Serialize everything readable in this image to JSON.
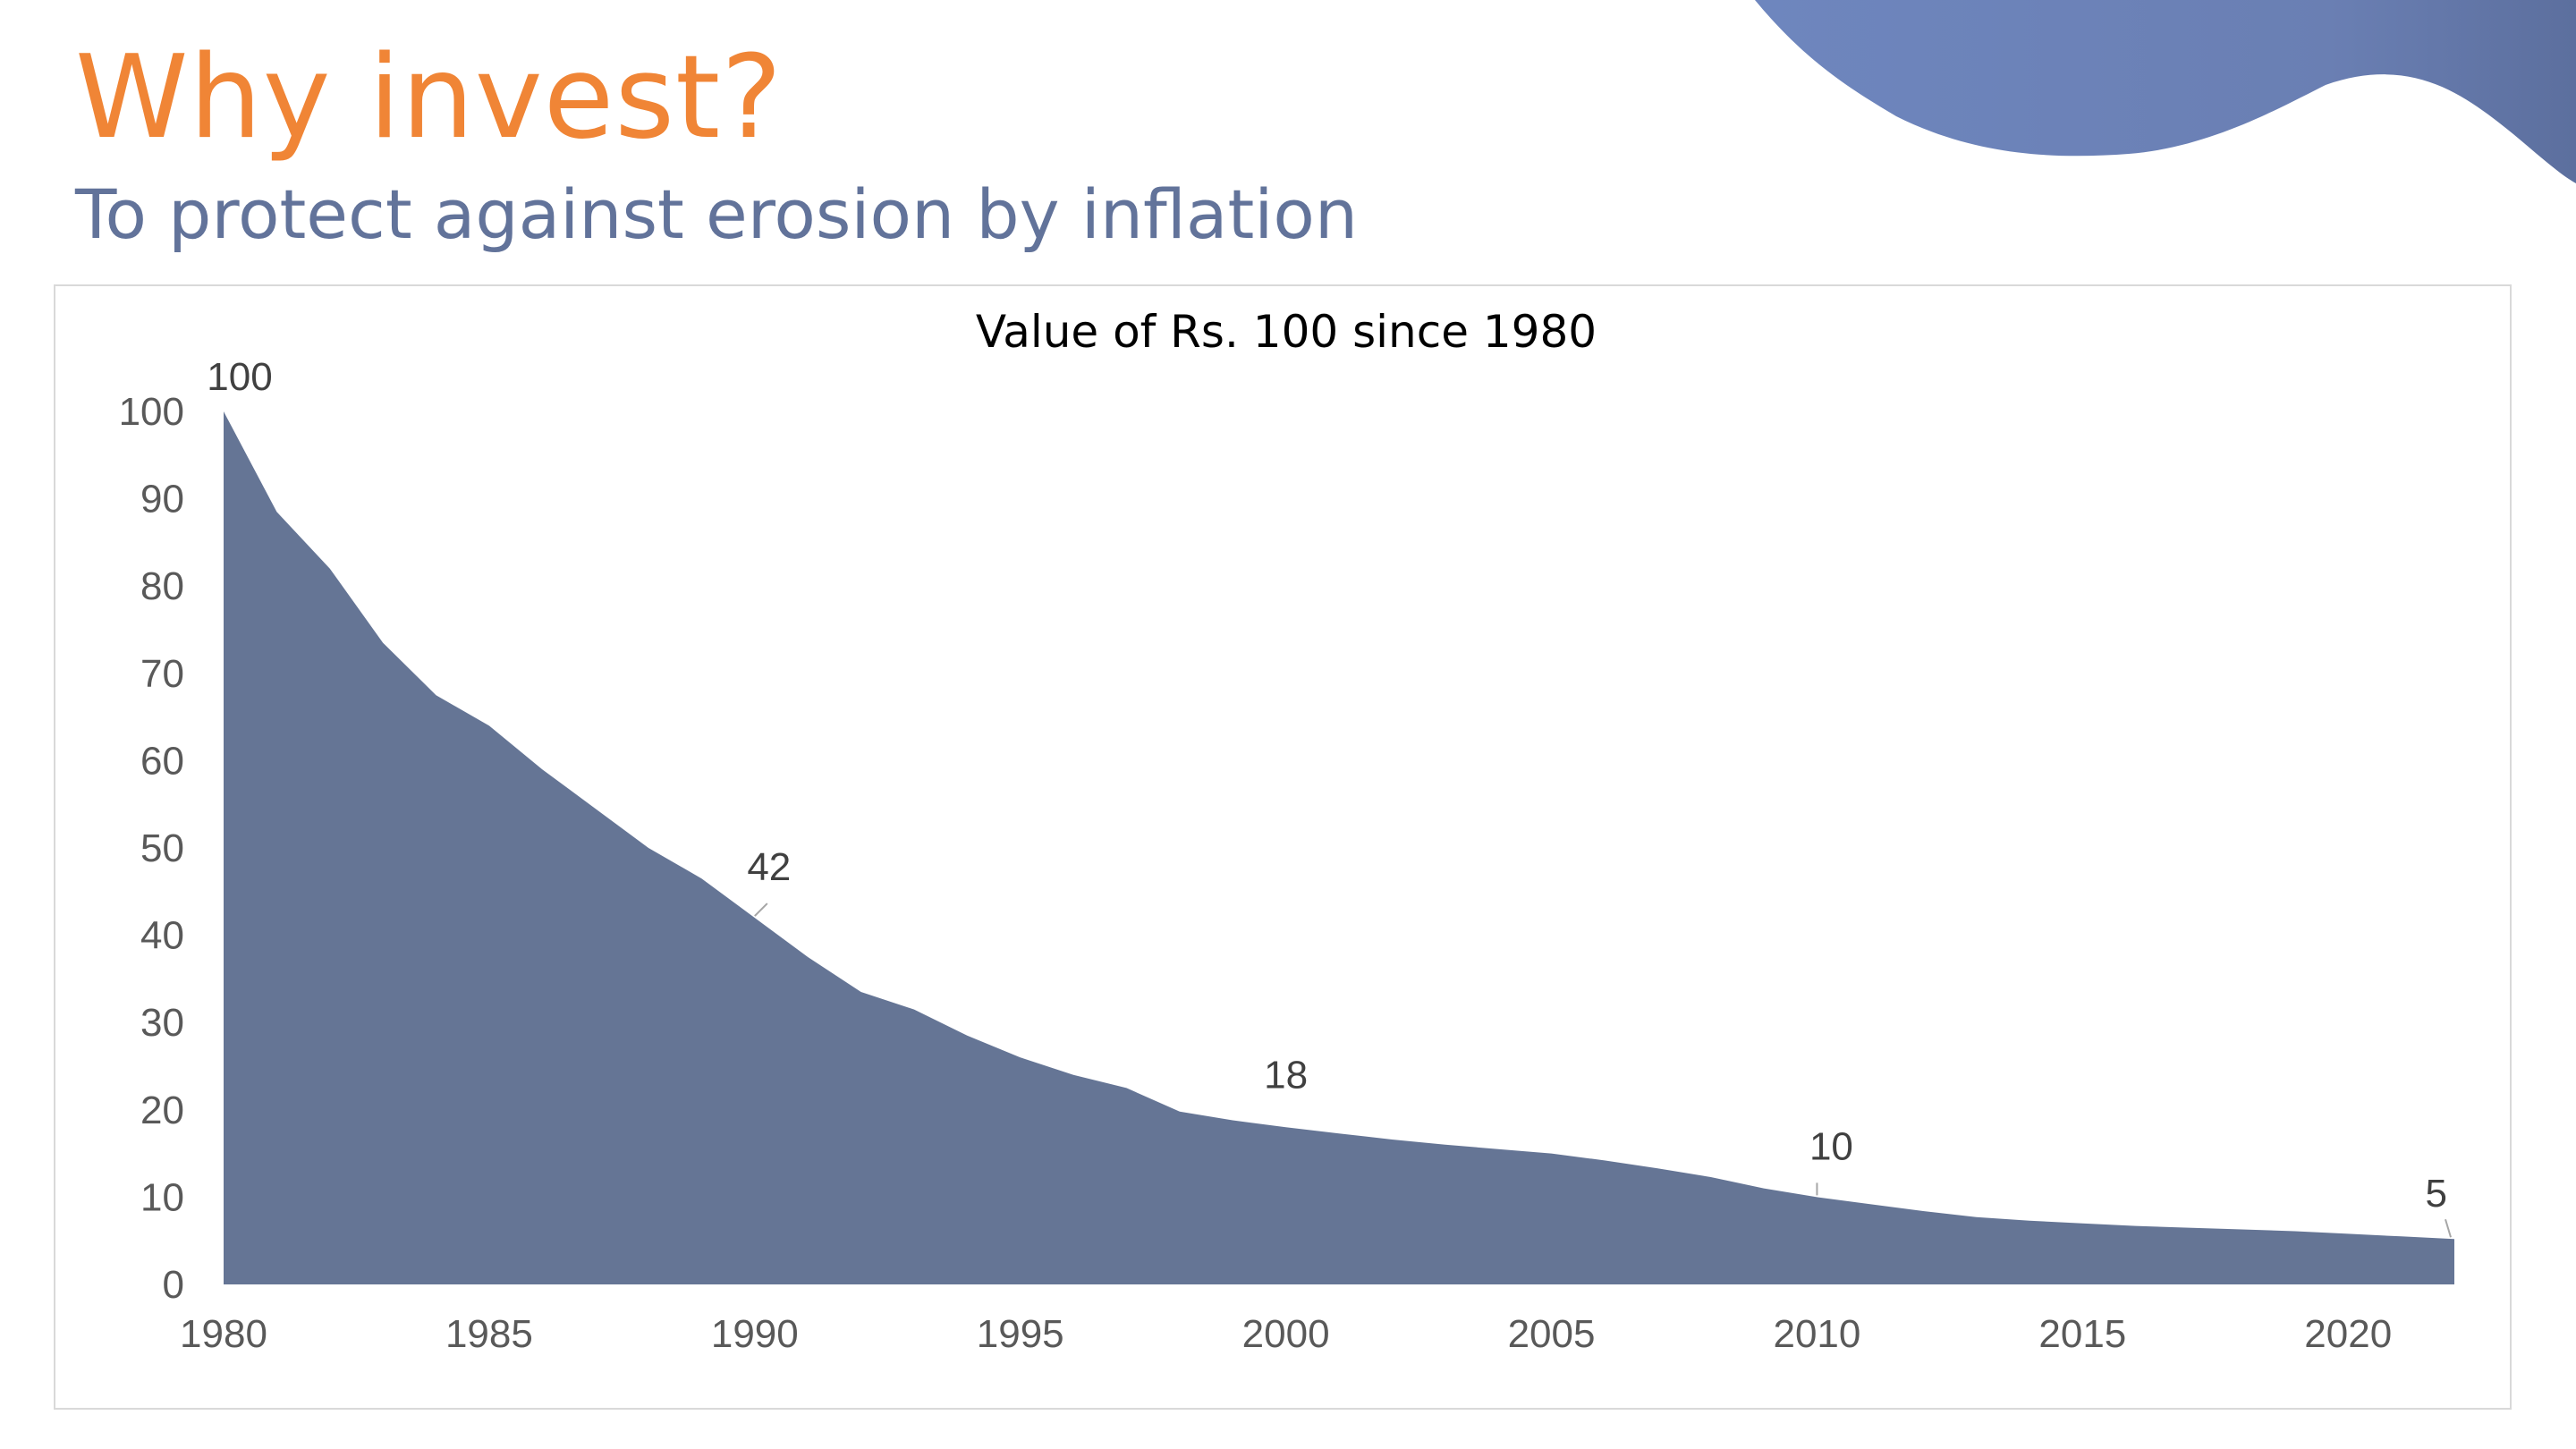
{
  "slide": {
    "title": "Why invest?",
    "subtitle": "To protect against erosion by inflation",
    "colors": {
      "title": "#F08536",
      "subtitle": "#62739A",
      "area": "#657595",
      "blob": "#6A7FB3"
    }
  },
  "chart_data": {
    "type": "area",
    "title": "Value of Rs. 100 since 1980",
    "xlabel": "",
    "ylabel": "",
    "x": [
      1980,
      1981,
      1982,
      1983,
      1984,
      1985,
      1986,
      1987,
      1988,
      1989,
      1990,
      1991,
      1992,
      1993,
      1994,
      1995,
      1996,
      1997,
      1998,
      1999,
      2000,
      2001,
      2002,
      2003,
      2004,
      2005,
      2006,
      2007,
      2008,
      2009,
      2010,
      2011,
      2012,
      2013,
      2014,
      2015,
      2016,
      2017,
      2018,
      2019,
      2020,
      2021,
      2022
    ],
    "series": [
      {
        "values": [
          100,
          88.5,
          82,
          73.5,
          67.5,
          64,
          59,
          54.5,
          50,
          46.5,
          42,
          37.5,
          33.5,
          31.5,
          28.5,
          26,
          24,
          22.5,
          19.8,
          18.8,
          18,
          17.3,
          16.6,
          16,
          15.5,
          15,
          14.2,
          13.3,
          12.3,
          11,
          10,
          9.2,
          8.4,
          7.7,
          7.3,
          7,
          6.7,
          6.5,
          6.3,
          6.1,
          5.8,
          5.5,
          5.2
        ]
      }
    ],
    "data_labels": [
      {
        "x": 1980,
        "value": "100"
      },
      {
        "x": 1990,
        "value": "42"
      },
      {
        "x": 2000,
        "value": "18"
      },
      {
        "x": 2010,
        "value": "10"
      },
      {
        "x": 2022,
        "value": "5"
      }
    ],
    "x_ticks": [
      1980,
      1985,
      1990,
      1995,
      2000,
      2005,
      2010,
      2015,
      2020
    ],
    "y_ticks": [
      0,
      10,
      20,
      30,
      40,
      50,
      60,
      70,
      80,
      90,
      100
    ],
    "xlim": [
      1980,
      2022
    ],
    "ylim": [
      0,
      100
    ],
    "grid": false,
    "legend": "none"
  }
}
